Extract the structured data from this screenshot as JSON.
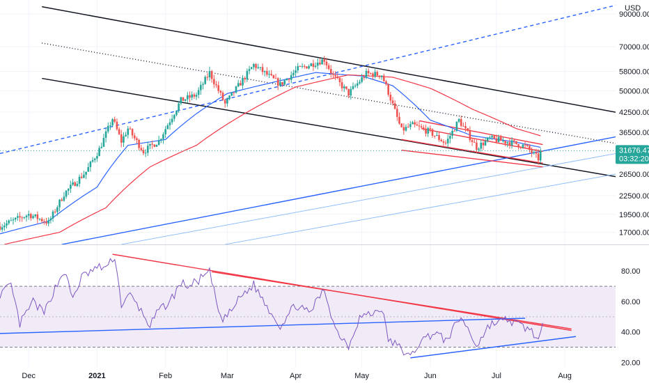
{
  "chart_data": [
    {
      "type": "candlestick",
      "panel": "price",
      "currency_label": "USD",
      "y_scale": "log",
      "ylim": [
        15500,
        100000
      ],
      "y_ticks": [
        {
          "value": 90000,
          "label": "90000.00"
        },
        {
          "value": 70000,
          "label": "70000.00"
        },
        {
          "value": 58000,
          "label": "58000.00"
        },
        {
          "value": 50000,
          "label": "50000.00"
        },
        {
          "value": 42500,
          "label": "42500.00"
        },
        {
          "value": 36500,
          "label": "36500.00"
        },
        {
          "value": 26500,
          "label": "26500.00"
        },
        {
          "value": 22500,
          "label": "22500.00"
        },
        {
          "value": 19500,
          "label": "19500.00"
        },
        {
          "value": 17000,
          "label": "17000.00"
        }
      ],
      "x_ticks": [
        {
          "date": "2020-12-01",
          "label": "Dec"
        },
        {
          "date": "2021-01-01",
          "label": "2021"
        },
        {
          "date": "2021-02-01",
          "label": "Feb"
        },
        {
          "date": "2021-03-01",
          "label": "Mar"
        },
        {
          "date": "2021-04-01",
          "label": "Apr"
        },
        {
          "date": "2021-05-01",
          "label": "May"
        },
        {
          "date": "2021-06-01",
          "label": "Jun"
        },
        {
          "date": "2021-07-01",
          "label": "Jul"
        },
        {
          "date": "2021-08-01",
          "label": "Aug"
        }
      ],
      "xlim": [
        "2020-11-18",
        "2021-08-24"
      ],
      "current_price": {
        "value": 31676.47,
        "label": "31676.47",
        "countdown": "03:32:20"
      },
      "ohlc_anchor_closes": [
        {
          "date": "2020-11-18",
          "close": 17800
        },
        {
          "date": "2020-11-25",
          "close": 18700
        },
        {
          "date": "2020-12-01",
          "close": 19500
        },
        {
          "date": "2020-12-10",
          "close": 18300
        },
        {
          "date": "2020-12-17",
          "close": 22800
        },
        {
          "date": "2020-12-27",
          "close": 27000
        },
        {
          "date": "2021-01-02",
          "close": 32000
        },
        {
          "date": "2021-01-08",
          "close": 40500
        },
        {
          "date": "2021-01-12",
          "close": 34000
        },
        {
          "date": "2021-01-15",
          "close": 37500
        },
        {
          "date": "2021-01-22",
          "close": 31500
        },
        {
          "date": "2021-01-29",
          "close": 34200
        },
        {
          "date": "2021-02-08",
          "close": 46500
        },
        {
          "date": "2021-02-15",
          "close": 48500
        },
        {
          "date": "2021-02-21",
          "close": 57500
        },
        {
          "date": "2021-02-28",
          "close": 45200
        },
        {
          "date": "2021-03-13",
          "close": 61000
        },
        {
          "date": "2021-03-25",
          "close": 52500
        },
        {
          "date": "2021-04-02",
          "close": 59000
        },
        {
          "date": "2021-04-14",
          "close": 63500
        },
        {
          "date": "2021-04-18",
          "close": 56000
        },
        {
          "date": "2021-04-25",
          "close": 49000
        },
        {
          "date": "2021-05-03",
          "close": 57000
        },
        {
          "date": "2021-05-10",
          "close": 56500
        },
        {
          "date": "2021-05-13",
          "close": 49500
        },
        {
          "date": "2021-05-19",
          "close": 37000
        },
        {
          "date": "2021-05-24",
          "close": 38500
        },
        {
          "date": "2021-06-01",
          "close": 36500
        },
        {
          "date": "2021-06-08",
          "close": 33500
        },
        {
          "date": "2021-06-14",
          "close": 40000
        },
        {
          "date": "2021-06-22",
          "close": 32500
        },
        {
          "date": "2021-06-28",
          "close": 34700
        },
        {
          "date": "2021-07-07",
          "close": 33800
        },
        {
          "date": "2021-07-14",
          "close": 32800
        },
        {
          "date": "2021-07-20",
          "close": 29800
        },
        {
          "date": "2021-07-21",
          "close": 31676
        }
      ],
      "moving_averages": [
        {
          "color": "#2962ff",
          "anchors": [
            {
              "date": "2020-11-18",
              "value": 16800
            },
            {
              "date": "2020-12-10",
              "value": 18500
            },
            {
              "date": "2021-01-01",
              "value": 24000
            },
            {
              "date": "2021-01-15",
              "value": 33000
            },
            {
              "date": "2021-02-01",
              "value": 34500
            },
            {
              "date": "2021-02-15",
              "value": 42000
            },
            {
              "date": "2021-03-01",
              "value": 49000
            },
            {
              "date": "2021-03-20",
              "value": 53000
            },
            {
              "date": "2021-04-10",
              "value": 57500
            },
            {
              "date": "2021-05-01",
              "value": 56000
            },
            {
              "date": "2021-05-15",
              "value": 52000
            },
            {
              "date": "2021-06-01",
              "value": 40000
            },
            {
              "date": "2021-06-20",
              "value": 35500
            },
            {
              "date": "2021-07-10",
              "value": 33800
            },
            {
              "date": "2021-07-21",
              "value": 32500
            }
          ]
        },
        {
          "color": "#f23645",
          "anchors": [
            {
              "date": "2020-11-20",
              "value": 15500
            },
            {
              "date": "2020-12-15",
              "value": 17000
            },
            {
              "date": "2021-01-05",
              "value": 20500
            },
            {
              "date": "2021-01-25",
              "value": 28000
            },
            {
              "date": "2021-02-15",
              "value": 33000
            },
            {
              "date": "2021-03-10",
              "value": 42500
            },
            {
              "date": "2021-04-01",
              "value": 51500
            },
            {
              "date": "2021-04-25",
              "value": 56500
            },
            {
              "date": "2021-05-15",
              "value": 55500
            },
            {
              "date": "2021-06-01",
              "value": 51000
            },
            {
              "date": "2021-06-20",
              "value": 43500
            },
            {
              "date": "2021-07-10",
              "value": 37500
            },
            {
              "date": "2021-07-21",
              "value": 35500
            }
          ]
        }
      ],
      "trendlines": [
        {
          "color": "#131722",
          "style": "solid",
          "from": {
            "date": "2020-12-07",
            "value": 95000
          },
          "to": {
            "date": "2021-08-24",
            "value": 42500
          }
        },
        {
          "color": "#131722",
          "style": "solid",
          "from": {
            "date": "2020-12-07",
            "value": 55000
          },
          "to": {
            "date": "2021-08-24",
            "value": 26000
          }
        },
        {
          "color": "#131722",
          "style": "dotted",
          "from": {
            "date": "2020-12-07",
            "value": 72000
          },
          "to": {
            "date": "2021-08-24",
            "value": 33500
          }
        },
        {
          "color": "#2962ff",
          "style": "dashed",
          "from": {
            "date": "2020-11-18",
            "value": 31000
          },
          "to": {
            "date": "2021-08-24",
            "value": 96000
          }
        },
        {
          "color": "#2962ff",
          "style": "solid",
          "from": {
            "date": "2020-12-16",
            "value": 15500
          },
          "to": {
            "date": "2021-08-24",
            "value": 35200
          }
        },
        {
          "color": "#90bff9",
          "style": "solid",
          "from": {
            "date": "2021-01-12",
            "value": 15500
          },
          "to": {
            "date": "2021-08-24",
            "value": 31000
          }
        },
        {
          "color": "#90bff9",
          "style": "solid",
          "from": {
            "date": "2021-02-28",
            "value": 15500
          },
          "to": {
            "date": "2021-08-24",
            "value": 26500
          }
        },
        {
          "color": "#2962ff",
          "style": "solid",
          "from": {
            "date": "2020-11-18",
            "value": 145000
          },
          "to": {
            "date": "2020-12-05",
            "value": 160000
          }
        },
        {
          "color": "#f23645",
          "style": "solid",
          "from": {
            "date": "2021-05-19",
            "value": 34500
          },
          "to": {
            "date": "2021-07-22",
            "value": 28800
          }
        },
        {
          "color": "#f23645",
          "style": "solid",
          "from": {
            "date": "2021-05-19",
            "value": 31800
          },
          "to": {
            "date": "2021-07-22",
            "value": 28000
          }
        },
        {
          "color": "#f23645",
          "style": "solid",
          "from": {
            "date": "2021-05-27",
            "value": 39800
          },
          "to": {
            "date": "2021-07-22",
            "value": 33200
          }
        },
        {
          "color": "#f23645",
          "style": "solid",
          "from": {
            "date": "2021-05-28",
            "value": 37500
          },
          "to": {
            "date": "2021-07-22",
            "value": 31500
          }
        }
      ],
      "colors": {
        "up": "#26a69a",
        "down": "#ef5350",
        "last_price": "#26a69a"
      }
    },
    {
      "type": "line",
      "panel": "rsi",
      "ylim": [
        17,
        97
      ],
      "y_ticks": [
        {
          "value": 80,
          "label": "80.00"
        },
        {
          "value": 60,
          "label": "60.00"
        },
        {
          "value": 40,
          "label": "40.00"
        },
        {
          "value": 20,
          "label": "20.00"
        }
      ],
      "band": {
        "upper": 70,
        "lower": 30,
        "mid": 50,
        "fill": "#ede7f6"
      },
      "series": [
        {
          "color": "#7e57c2",
          "anchors": [
            {
              "date": "2020-11-18",
              "value": 65
            },
            {
              "date": "2020-11-23",
              "value": 70
            },
            {
              "date": "2020-11-27",
              "value": 45
            },
            {
              "date": "2020-12-03",
              "value": 60
            },
            {
              "date": "2020-12-08",
              "value": 52
            },
            {
              "date": "2020-12-12",
              "value": 66
            },
            {
              "date": "2020-12-17",
              "value": 80
            },
            {
              "date": "2020-12-21",
              "value": 62
            },
            {
              "date": "2020-12-25",
              "value": 76
            },
            {
              "date": "2021-01-01",
              "value": 82
            },
            {
              "date": "2021-01-06",
              "value": 83
            },
            {
              "date": "2021-01-09",
              "value": 90
            },
            {
              "date": "2021-01-12",
              "value": 58
            },
            {
              "date": "2021-01-16",
              "value": 64
            },
            {
              "date": "2021-01-20",
              "value": 56
            },
            {
              "date": "2021-01-25",
              "value": 44
            },
            {
              "date": "2021-01-29",
              "value": 54
            },
            {
              "date": "2021-02-03",
              "value": 60
            },
            {
              "date": "2021-02-08",
              "value": 72
            },
            {
              "date": "2021-02-12",
              "value": 70
            },
            {
              "date": "2021-02-17",
              "value": 75
            },
            {
              "date": "2021-02-21",
              "value": 79
            },
            {
              "date": "2021-02-26",
              "value": 48
            },
            {
              "date": "2021-03-02",
              "value": 52
            },
            {
              "date": "2021-03-07",
              "value": 63
            },
            {
              "date": "2021-03-13",
              "value": 71
            },
            {
              "date": "2021-03-19",
              "value": 57
            },
            {
              "date": "2021-03-25",
              "value": 44
            },
            {
              "date": "2021-04-01",
              "value": 58
            },
            {
              "date": "2021-04-07",
              "value": 52
            },
            {
              "date": "2021-04-14",
              "value": 68
            },
            {
              "date": "2021-04-19",
              "value": 42
            },
            {
              "date": "2021-04-25",
              "value": 31
            },
            {
              "date": "2021-04-30",
              "value": 50
            },
            {
              "date": "2021-05-06",
              "value": 52
            },
            {
              "date": "2021-05-10",
              "value": 56
            },
            {
              "date": "2021-05-13",
              "value": 35
            },
            {
              "date": "2021-05-18",
              "value": 30
            },
            {
              "date": "2021-05-23",
              "value": 23
            },
            {
              "date": "2021-05-27",
              "value": 33
            },
            {
              "date": "2021-06-03",
              "value": 40
            },
            {
              "date": "2021-06-08",
              "value": 34
            },
            {
              "date": "2021-06-15",
              "value": 50
            },
            {
              "date": "2021-06-22",
              "value": 31
            },
            {
              "date": "2021-06-28",
              "value": 45
            },
            {
              "date": "2021-07-06",
              "value": 48
            },
            {
              "date": "2021-07-12",
              "value": 44
            },
            {
              "date": "2021-07-17",
              "value": 41
            },
            {
              "date": "2021-07-20",
              "value": 34
            },
            {
              "date": "2021-07-22",
              "value": 43
            }
          ]
        }
      ],
      "trendlines": [
        {
          "color": "#f23645",
          "from": {
            "date": "2021-01-08",
            "value": 91
          },
          "to": {
            "date": "2021-08-04",
            "value": 41
          }
        },
        {
          "color": "#f23645",
          "from": {
            "date": "2021-02-22",
            "value": 79.5
          },
          "to": {
            "date": "2021-08-04",
            "value": 42
          }
        },
        {
          "color": "#2962ff",
          "from": {
            "date": "2020-11-18",
            "value": 39
          },
          "to": {
            "date": "2021-07-14",
            "value": 49
          }
        },
        {
          "color": "#2962ff",
          "from": {
            "date": "2021-05-23",
            "value": 23
          },
          "to": {
            "date": "2021-08-06",
            "value": 37
          }
        }
      ]
    }
  ]
}
